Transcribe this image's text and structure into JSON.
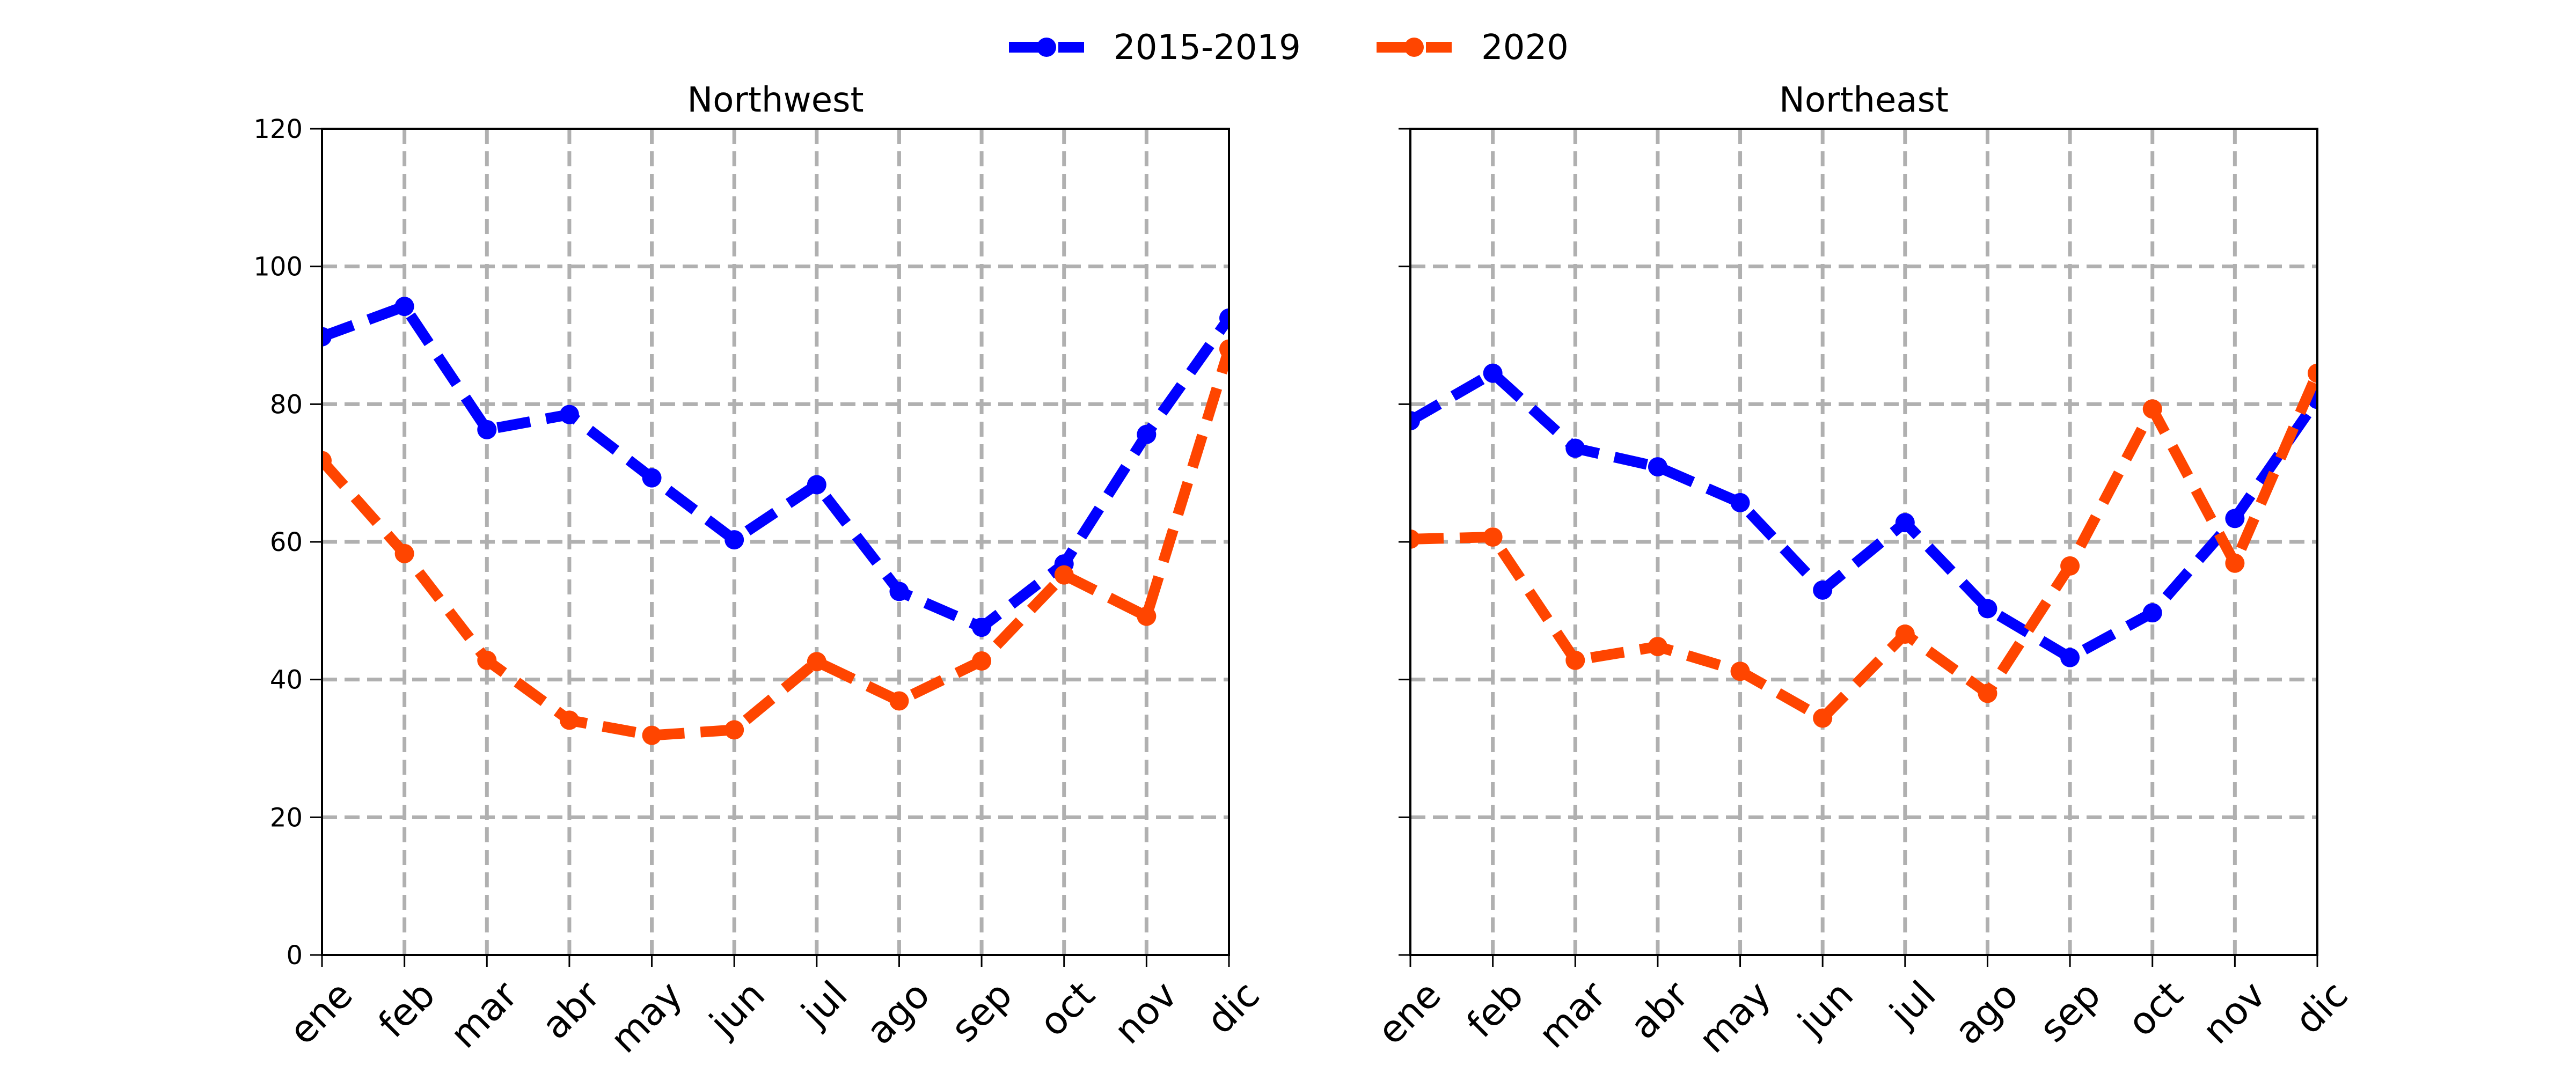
{
  "legend": [
    {
      "label": "2015-2019",
      "color": "#0000ff"
    },
    {
      "label": "2020",
      "color": "#ff4500"
    }
  ],
  "chart_data": [
    {
      "type": "line",
      "title": "Northwest",
      "xlabel": "",
      "ylabel": "",
      "categories": [
        "ene",
        "feb",
        "mar",
        "abr",
        "may",
        "jun",
        "jul",
        "ago",
        "sep",
        "oct",
        "nov",
        "dic"
      ],
      "ylim": [
        0,
        120
      ],
      "yticks": [
        0,
        20,
        40,
        60,
        80,
        100,
        120
      ],
      "grid": true,
      "legend_position": "top-center",
      "series": [
        {
          "name": "2015-2019",
          "color": "#0000ff",
          "values": [
            89.8,
            94.2,
            76.3,
            78.5,
            69.3,
            60.3,
            68.3,
            52.8,
            47.6,
            56.8,
            75.6,
            92.5
          ]
        },
        {
          "name": "2020",
          "color": "#ff4500",
          "values": [
            71.8,
            58.3,
            42.8,
            34.1,
            31.9,
            32.7,
            42.6,
            36.9,
            42.7,
            55.2,
            49.2,
            88.0
          ]
        }
      ]
    },
    {
      "type": "line",
      "title": "Northeast",
      "xlabel": "",
      "ylabel": "",
      "categories": [
        "ene",
        "feb",
        "mar",
        "abr",
        "may",
        "jun",
        "jul",
        "ago",
        "sep",
        "oct",
        "nov",
        "dic"
      ],
      "ylim": [
        0,
        120
      ],
      "yticks": [
        0,
        20,
        40,
        60,
        80,
        100,
        120
      ],
      "grid": true,
      "series": [
        {
          "name": "2015-2019",
          "color": "#0000ff",
          "values": [
            77.6,
            84.5,
            73.6,
            70.9,
            65.7,
            53.0,
            62.8,
            50.3,
            43.2,
            49.7,
            63.4,
            80.7
          ]
        },
        {
          "name": "2020",
          "color": "#ff4500",
          "values": [
            60.4,
            60.7,
            42.8,
            44.8,
            41.2,
            34.4,
            46.6,
            38.0,
            56.5,
            79.3,
            56.9,
            84.5
          ]
        }
      ]
    }
  ]
}
